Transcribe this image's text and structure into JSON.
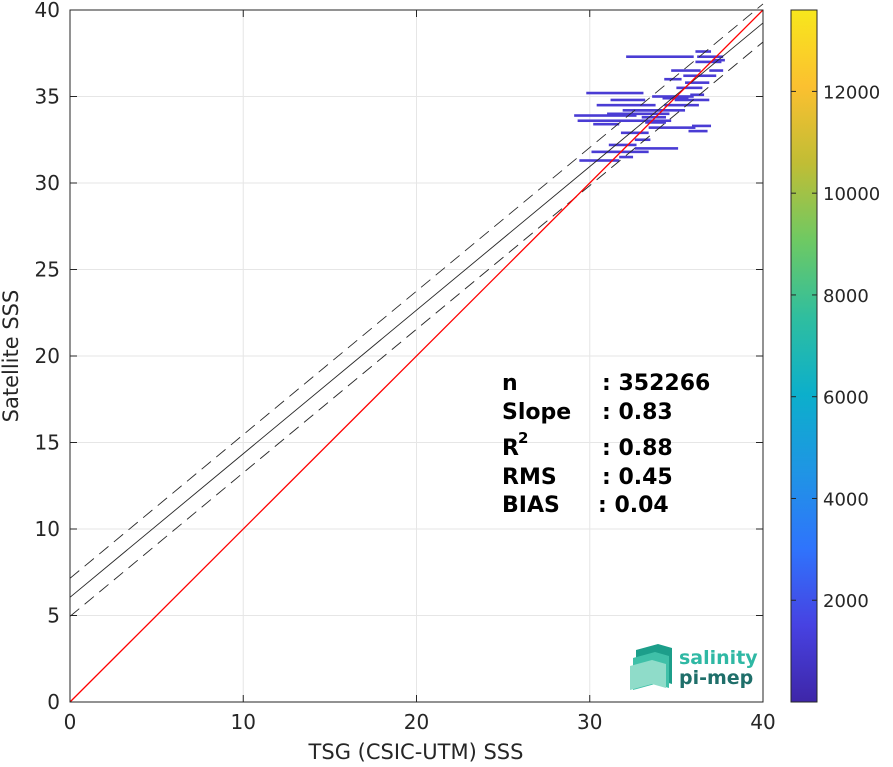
{
  "chart_data": {
    "type": "heatmap",
    "xlabel": "TSG (CSIC-UTM) SSS",
    "ylabel": "Satellite SSS",
    "xlim": [
      0,
      40
    ],
    "ylim": [
      0,
      40
    ],
    "xticks": [
      "0",
      "10",
      "20",
      "30",
      "40"
    ],
    "yticks": [
      "0",
      "5",
      "10",
      "15",
      "20",
      "25",
      "30",
      "35",
      "40"
    ],
    "grid": true,
    "one_to_one_line": {
      "color": "#ff0000",
      "x": [
        0,
        40
      ],
      "y": [
        0,
        40
      ]
    },
    "regression_line": {
      "slope": 0.83,
      "intercept": 6.05,
      "x": [
        0,
        40
      ],
      "y": [
        6.05,
        39.25
      ]
    },
    "confidence_bounds": [
      {
        "x": [
          0,
          40
        ],
        "y": [
          7.15,
          40.35
        ]
      },
      {
        "x": [
          0,
          40
        ],
        "y": [
          4.95,
          38.15
        ]
      }
    ],
    "density_cells": [
      {
        "x": [
          33.3,
          34.7
        ],
        "y": 33.6
      },
      {
        "x": [
          33.2,
          34.4
        ],
        "y": 33.5
      },
      {
        "x": [
          32.5,
          35.5
        ],
        "y": 34.2
      },
      {
        "x": [
          34.3,
          36.3
        ],
        "y": 34.5
      },
      {
        "x": [
          35.5,
          36.9
        ],
        "y": 35.8
      },
      {
        "x": [
          34.2,
          35.7
        ],
        "y": 34.9
      },
      {
        "x": [
          33.6,
          36.0
        ],
        "y": 35.0
      },
      {
        "x": [
          36.1,
          37.6
        ],
        "y": 37.0
      },
      {
        "x": [
          35.4,
          37.3
        ],
        "y": 36.2
      },
      {
        "x": [
          36.2,
          37.7
        ],
        "y": 37.3
      },
      {
        "x": [
          35.0,
          36.5
        ],
        "y": 35.5
      },
      {
        "x": [
          33.0,
          34.4
        ],
        "y": 33.8
      },
      {
        "x": [
          31.0,
          34.6
        ],
        "y": 34.0
      },
      {
        "x": [
          29.3,
          33.5
        ],
        "y": 33.6
      },
      {
        "x": [
          29.1,
          32.7
        ],
        "y": 33.9
      },
      {
        "x": [
          30.4,
          33.8
        ],
        "y": 34.5
      },
      {
        "x": [
          31.2,
          33.2
        ],
        "y": 34.8
      },
      {
        "x": [
          29.8,
          33.1
        ],
        "y": 35.2
      },
      {
        "x": [
          33.4,
          36.1
        ],
        "y": 33.2
      },
      {
        "x": [
          31.9,
          34.2
        ],
        "y": 34.2
      },
      {
        "x": [
          30.2,
          31.7
        ],
        "y": 33.4
      },
      {
        "x": [
          34.3,
          35.3
        ],
        "y": 36.0
      },
      {
        "x": [
          31.8,
          33.4
        ],
        "y": 32.9
      },
      {
        "x": [
          32.6,
          33.5
        ],
        "y": 32.5
      },
      {
        "x": [
          31.1,
          32.7
        ],
        "y": 32.2
      },
      {
        "x": [
          30.1,
          33.4
        ],
        "y": 31.8
      },
      {
        "x": [
          29.4,
          31.7
        ],
        "y": 31.3
      },
      {
        "x": [
          31.7,
          32.5
        ],
        "y": 31.5
      },
      {
        "x": [
          32.6,
          35.1
        ],
        "y": 32.0
      },
      {
        "x": [
          34.9,
          36.9
        ],
        "y": 34.8
      },
      {
        "x": [
          34.7,
          36.4
        ],
        "y": 36.5
      },
      {
        "x": [
          35.8,
          36.6
        ],
        "y": 35.1
      },
      {
        "x": [
          35.9,
          37.0
        ],
        "y": 33.3
      },
      {
        "x": [
          35.7,
          36.8
        ],
        "y": 33.0
      },
      {
        "x": [
          32.1,
          36.0
        ],
        "y": 37.3
      },
      {
        "x": [
          33.0,
          33.4
        ],
        "y": 34.0
      },
      {
        "x": [
          36.9,
          37.7
        ],
        "y": 36.5
      },
      {
        "x": [
          36.1,
          37.0
        ],
        "y": 37.6
      },
      {
        "x": [
          37.1,
          37.8
        ],
        "y": 37.1
      }
    ],
    "colorbar": {
      "ticks": [
        "2000",
        "4000",
        "6000",
        "8000",
        "10000",
        "12000"
      ],
      "range": [
        0,
        13600
      ],
      "colormap": [
        "#3e26a8",
        "#4742e2",
        "#2f74fc",
        "#1f95e4",
        "#0cafcb",
        "#2fbe9f",
        "#6ec963",
        "#c0bd35",
        "#fbc030",
        "#f8e71c"
      ]
    },
    "stats": [
      {
        "label": "n",
        "value": ": 352266"
      },
      {
        "label": "Slope",
        "value": ": 0.83"
      },
      {
        "label": "R",
        "sup": "2",
        "value": ": 0.88"
      },
      {
        "label": "RMS",
        "value": ": 0.45"
      },
      {
        "label": "BIAS",
        "value": ": 0.04"
      }
    ]
  },
  "logo": {
    "line1": "salinity",
    "line2": "pi-mep"
  }
}
